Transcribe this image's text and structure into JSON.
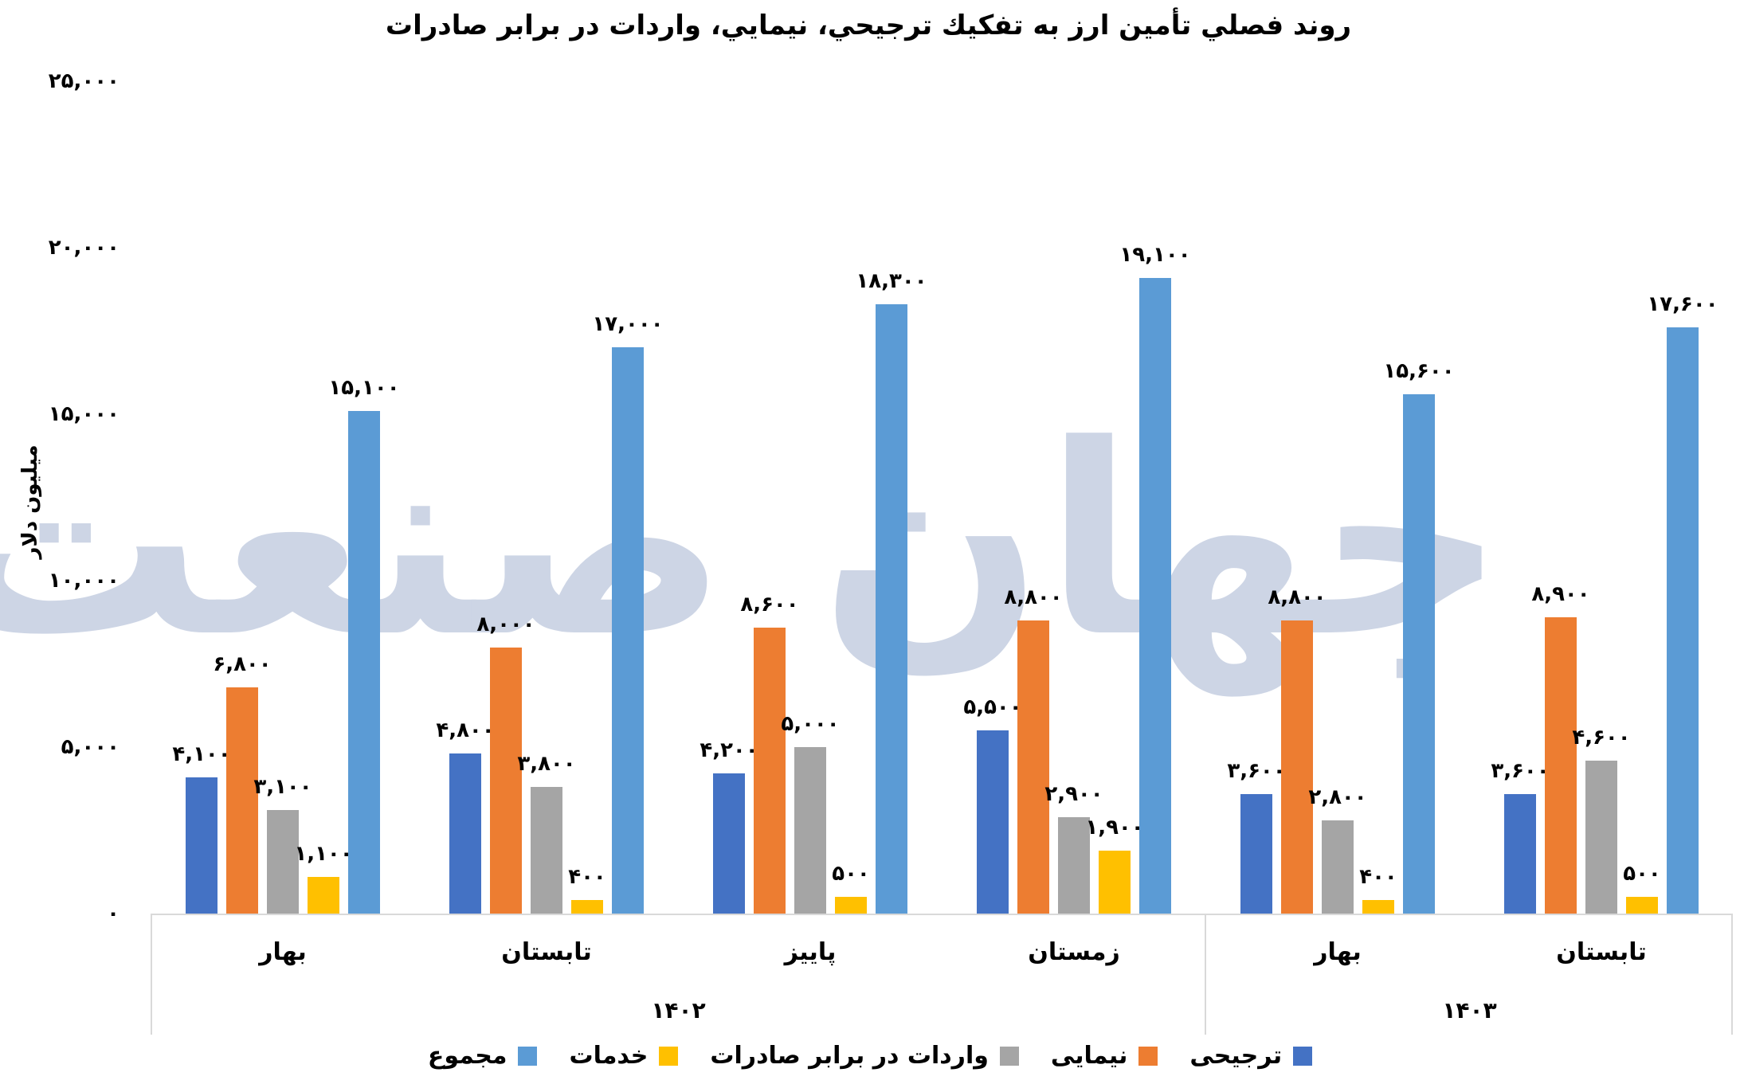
{
  "title": "روند فصلي تأمين ارز به تفكيك ترجيحي، نيمايي، واردات در برابر صادرات",
  "watermark": "جهان صنعت",
  "y_axis": {
    "title": "میلیون دلار",
    "ticks": [
      "۰",
      "۵,۰۰۰",
      "۱۰,۰۰۰",
      "۱۵,۰۰۰",
      "۲۰,۰۰۰",
      "۲۵,۰۰۰"
    ]
  },
  "categories": [
    "بهار",
    "تابستان",
    "پاییز",
    "زمستان",
    "بهار",
    "تابستان"
  ],
  "years": [
    {
      "label": "۱۴۰۲",
      "span": 4
    },
    {
      "label": "۱۴۰۳",
      "span": 2
    }
  ],
  "legend": [
    {
      "label": "ترجیحی",
      "color": "#4472C4"
    },
    {
      "label": "نیمایی",
      "color": "#ED7D31"
    },
    {
      "label": "واردات در برابر صادرات",
      "color": "#A5A5A5"
    },
    {
      "label": "خدمات",
      "color": "#FFC000"
    },
    {
      "label": "مجموع",
      "color": "#5B9BD5"
    }
  ],
  "data_labels": [
    [
      "۴,۱۰۰",
      "۶,۸۰۰",
      "۳,۱۰۰",
      "۱,۱۰۰",
      "۱۵,۱۰۰"
    ],
    [
      "۴,۸۰۰",
      "۸,۰۰۰",
      "۳,۸۰۰",
      "۴۰۰",
      "۱۷,۰۰۰"
    ],
    [
      "۴,۲۰۰",
      "۸,۶۰۰",
      "۵,۰۰۰",
      "۵۰۰",
      "۱۸,۳۰۰"
    ],
    [
      "۵,۵۰۰",
      "۸,۸۰۰",
      "۲,۹۰۰",
      "۱,۹۰۰",
      "۱۹,۱۰۰"
    ],
    [
      "۳,۶۰۰",
      "۸,۸۰۰",
      "۲,۸۰۰",
      "۴۰۰",
      "۱۵,۶۰۰"
    ],
    [
      "۳,۶۰۰",
      "۸,۹۰۰",
      "۴,۶۰۰",
      "۵۰۰",
      "۱۷,۶۰۰"
    ]
  ],
  "chart_data": {
    "type": "bar",
    "title": "روند فصلي تأمين ارز به تفكيك ترجيحي، نيمايي، واردات در برابر صادرات",
    "xlabel": "",
    "ylabel": "میلیون دلار",
    "ylim": [
      0,
      25000
    ],
    "yticks": [
      0,
      5000,
      10000,
      15000,
      20000,
      25000
    ],
    "grid": false,
    "legend_position": "bottom",
    "categories": [
      "بهار ۱۴۰۲",
      "تابستان ۱۴۰۲",
      "پاییز ۱۴۰۲",
      "زمستان ۱۴۰۲",
      "بهار ۱۴۰۳",
      "تابستان ۱۴۰۳"
    ],
    "category_groups": [
      {
        "label": "۱۴۰۲",
        "categories": [
          "بهار",
          "تابستان",
          "پاییز",
          "زمستان"
        ]
      },
      {
        "label": "۱۴۰۳",
        "categories": [
          "بهار",
          "تابستان"
        ]
      }
    ],
    "series": [
      {
        "name": "ترجیحی",
        "color": "#4472C4",
        "values": [
          4100,
          4800,
          4200,
          5500,
          3600,
          3600
        ]
      },
      {
        "name": "نیمایی",
        "color": "#ED7D31",
        "values": [
          6800,
          8000,
          8600,
          8800,
          8800,
          8900
        ]
      },
      {
        "name": "واردات در برابر صادرات",
        "color": "#A5A5A5",
        "values": [
          3100,
          3800,
          5000,
          2900,
          2800,
          4600
        ]
      },
      {
        "name": "خدمات",
        "color": "#FFC000",
        "values": [
          1100,
          400,
          500,
          1900,
          400,
          500
        ]
      },
      {
        "name": "مجموع",
        "color": "#5B9BD5",
        "values": [
          15100,
          17000,
          18300,
          19100,
          15600,
          17600
        ]
      }
    ]
  }
}
